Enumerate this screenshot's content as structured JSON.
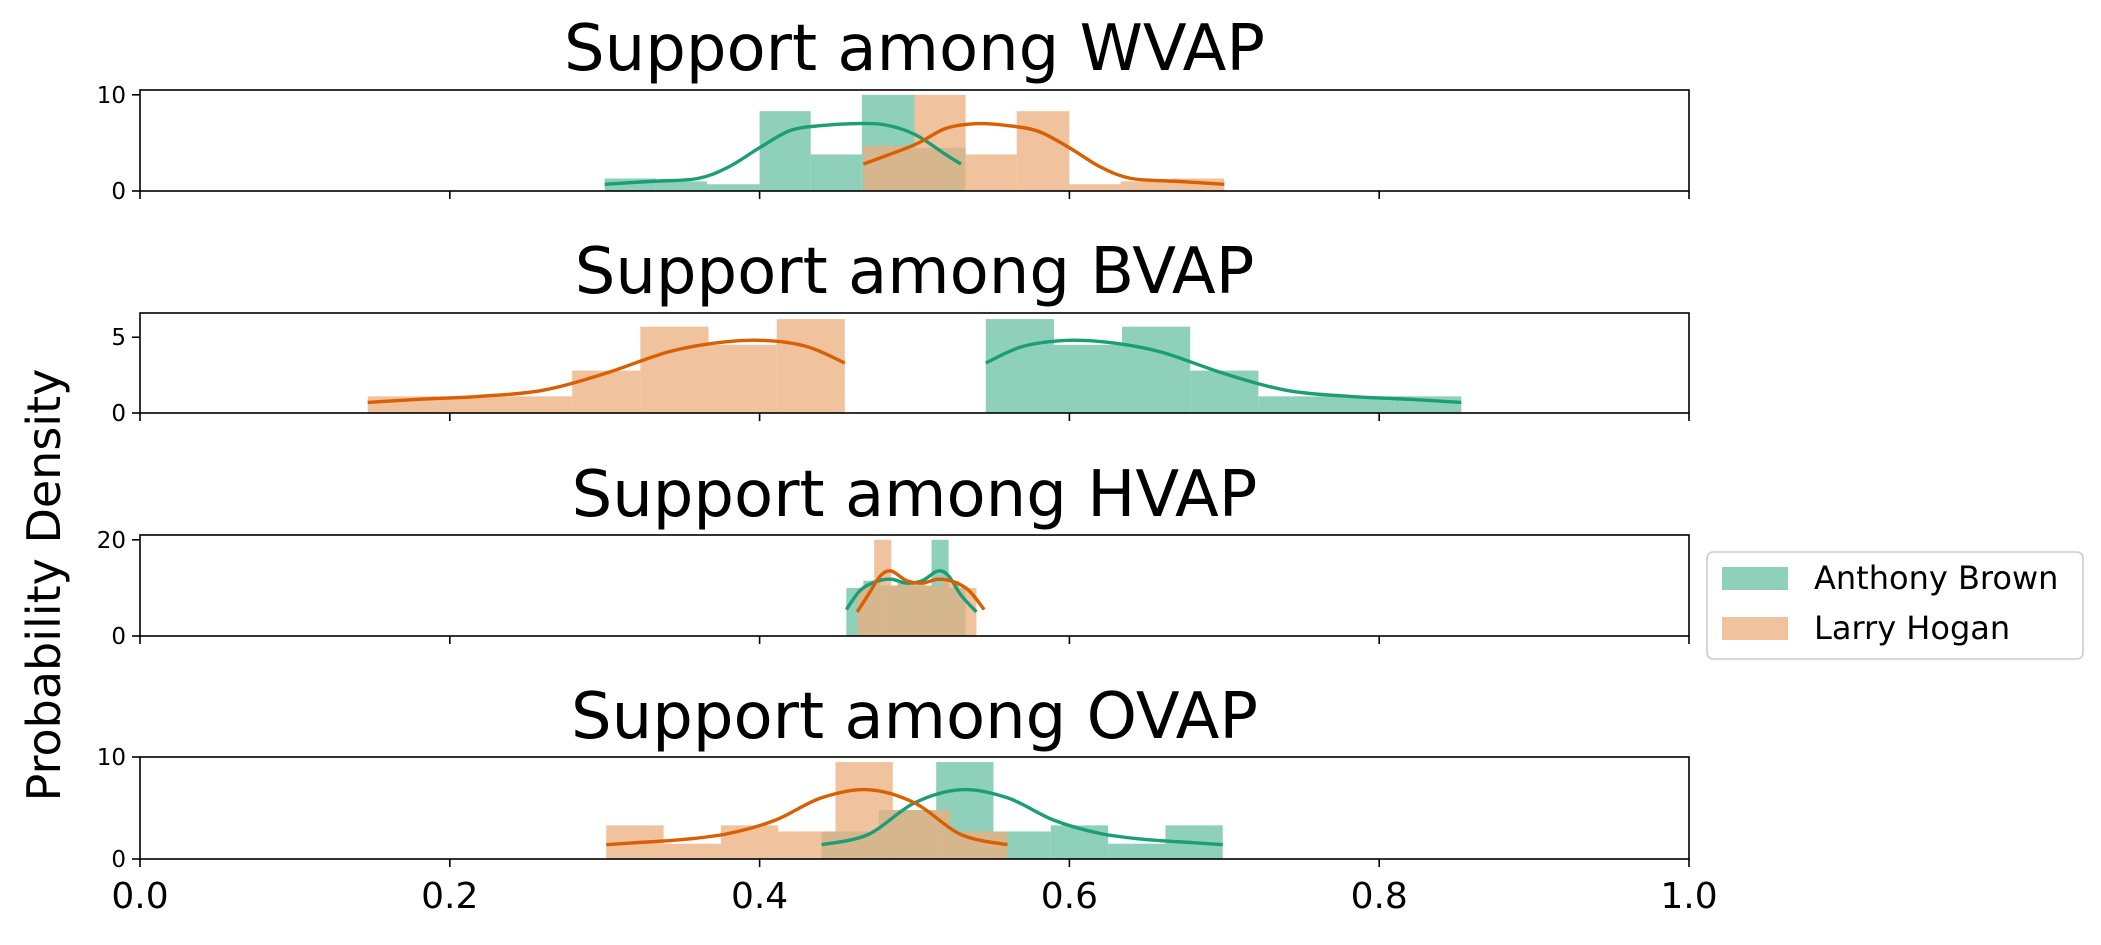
{
  "chart_data": {
    "type": "histogram",
    "ylabel": "Probability Density",
    "xlim": [
      0,
      1
    ],
    "x_ticks": [
      "0.0",
      "0.2",
      "0.4",
      "0.6",
      "0.8",
      "1.0"
    ],
    "x_tick_values": [
      0,
      0.2,
      0.4,
      0.6,
      0.8,
      1.0
    ],
    "legend": {
      "placement": "center-right",
      "entries": [
        {
          "name": "Anthony Brown",
          "color": "#1b9e77"
        },
        {
          "name": "Larry Hogan",
          "color": "#d95f02"
        }
      ]
    },
    "series_colors": {
      "brown_fill": "#8ecfba",
      "hogan_fill": "#ecae7e",
      "brown_line": "#1b9e77",
      "hogan_line": "#d95f02"
    },
    "panels": [
      {
        "title": "Support among WVAP",
        "ylim": [
          0,
          10.5
        ],
        "y_ticks": [
          "0",
          "10"
        ],
        "y_tick_values": [
          0,
          10
        ],
        "series": [
          {
            "name": "Anthony Brown",
            "bin_edges": [
              0.3,
              0.333,
              0.366,
              0.4,
              0.433,
              0.466,
              0.5,
              0.533
            ],
            "densities": [
              1.3,
              1.0,
              0.7,
              8.3,
              3.8,
              10.0,
              4.5
            ],
            "kde_x": [
              0.3,
              0.33,
              0.36,
              0.38,
              0.4,
              0.42,
              0.44,
              0.46,
              0.48,
              0.5,
              0.52,
              0.53
            ],
            "kde_y": [
              0.7,
              1.0,
              1.3,
              2.5,
              4.5,
              6.3,
              6.8,
              7.0,
              6.9,
              5.9,
              3.8,
              2.8
            ]
          },
          {
            "name": "Larry Hogan",
            "bin_edges": [
              0.467,
              0.5,
              0.533,
              0.566,
              0.6,
              0.633,
              0.666,
              0.7
            ],
            "densities": [
              4.7,
              10.0,
              3.8,
              8.3,
              0.7,
              1.0,
              1.3
            ],
            "kde_x": [
              0.467,
              0.5,
              0.52,
              0.54,
              0.56,
              0.58,
              0.6,
              0.62,
              0.64,
              0.67,
              0.7
            ],
            "kde_y": [
              2.8,
              4.8,
              6.5,
              7.0,
              6.8,
              6.2,
              4.5,
              2.5,
              1.3,
              1.0,
              0.7
            ]
          }
        ]
      },
      {
        "title": "Support among BVAP",
        "ylim": [
          0,
          6.6
        ],
        "y_ticks": [
          "0",
          "5"
        ],
        "y_tick_values": [
          0,
          5
        ],
        "series": [
          {
            "name": "Anthony Brown",
            "bin_edges": [
              0.546,
              0.59,
              0.634,
              0.678,
              0.722,
              0.766,
              0.81,
              0.853
            ],
            "densities": [
              6.2,
              4.5,
              5.7,
              2.8,
              1.1,
              1.1,
              1.1
            ],
            "kde_x": [
              0.546,
              0.57,
              0.6,
              0.63,
              0.66,
              0.7,
              0.74,
              0.78,
              0.82,
              0.853
            ],
            "kde_y": [
              3.3,
              4.4,
              4.8,
              4.6,
              4.0,
              2.6,
              1.5,
              1.1,
              0.9,
              0.7
            ]
          },
          {
            "name": "Larry Hogan",
            "bin_edges": [
              0.147,
              0.191,
              0.235,
              0.279,
              0.323,
              0.367,
              0.411,
              0.455
            ],
            "densities": [
              1.1,
              1.1,
              1.1,
              2.8,
              5.7,
              4.5,
              6.2
            ],
            "kde_x": [
              0.147,
              0.18,
              0.22,
              0.26,
              0.3,
              0.34,
              0.37,
              0.4,
              0.43,
              0.455
            ],
            "kde_y": [
              0.7,
              0.9,
              1.1,
              1.5,
              2.6,
              4.0,
              4.6,
              4.8,
              4.4,
              3.3
            ]
          }
        ]
      },
      {
        "title": "Support among HVAP",
        "ylim": [
          0,
          21
        ],
        "y_ticks": [
          "0",
          "20"
        ],
        "y_tick_values": [
          0,
          20
        ],
        "series": [
          {
            "name": "Anthony Brown",
            "bin_edges": [
              0.456,
              0.467,
              0.478,
              0.489,
              0.5,
              0.511,
              0.522,
              0.533
            ],
            "densities": [
              10.0,
              11.5,
              10.5,
              11.0,
              10.5,
              20.0,
              10.0
            ],
            "kde_x": [
              0.456,
              0.465,
              0.475,
              0.485,
              0.495,
              0.505,
              0.515,
              0.522,
              0.53,
              0.54
            ],
            "kde_y": [
              5.5,
              9.5,
              11.3,
              11.8,
              11.0,
              11.5,
              13.5,
              12.5,
              8.5,
              5.0
            ]
          },
          {
            "name": "Larry Hogan",
            "bin_edges": [
              0.463,
              0.474,
              0.485,
              0.496,
              0.507,
              0.518,
              0.529,
              0.54
            ],
            "densities": [
              10.0,
              20.0,
              10.5,
              11.0,
              10.5,
              11.5,
              10.0
            ],
            "kde_x": [
              0.463,
              0.47,
              0.478,
              0.485,
              0.495,
              0.505,
              0.515,
              0.525,
              0.535,
              0.545
            ],
            "kde_y": [
              5.0,
              8.5,
              12.5,
              13.5,
              11.5,
              11.0,
              11.8,
              11.3,
              9.5,
              5.5
            ]
          }
        ]
      },
      {
        "title": "Support among OVAP",
        "ylim": [
          0,
          10
        ],
        "y_ticks": [
          "0",
          "10"
        ],
        "y_tick_values": [
          0,
          10
        ],
        "series": [
          {
            "name": "Anthony Brown",
            "bin_edges": [
              0.44,
              0.477,
              0.514,
              0.551,
              0.588,
              0.625,
              0.662,
              0.699
            ],
            "densities": [
              2.7,
              4.8,
              9.5,
              2.7,
              3.3,
              1.5,
              3.3
            ],
            "kde_x": [
              0.44,
              0.47,
              0.5,
              0.53,
              0.56,
              0.59,
              0.62,
              0.65,
              0.68,
              0.699
            ],
            "kde_y": [
              1.4,
              2.4,
              5.5,
              6.8,
              6.0,
              3.8,
              2.5,
              1.9,
              1.6,
              1.4
            ]
          },
          {
            "name": "Larry Hogan",
            "bin_edges": [
              0.301,
              0.338,
              0.375,
              0.412,
              0.449,
              0.486,
              0.523,
              0.56
            ],
            "densities": [
              3.3,
              1.5,
              3.3,
              2.7,
              9.5,
              4.8,
              2.7
            ],
            "kde_x": [
              0.301,
              0.32,
              0.35,
              0.38,
              0.41,
              0.44,
              0.47,
              0.5,
              0.53,
              0.56
            ],
            "kde_y": [
              1.4,
              1.6,
              1.9,
              2.5,
              3.8,
              6.0,
              6.8,
              5.5,
              2.4,
              1.4
            ]
          }
        ]
      }
    ]
  }
}
